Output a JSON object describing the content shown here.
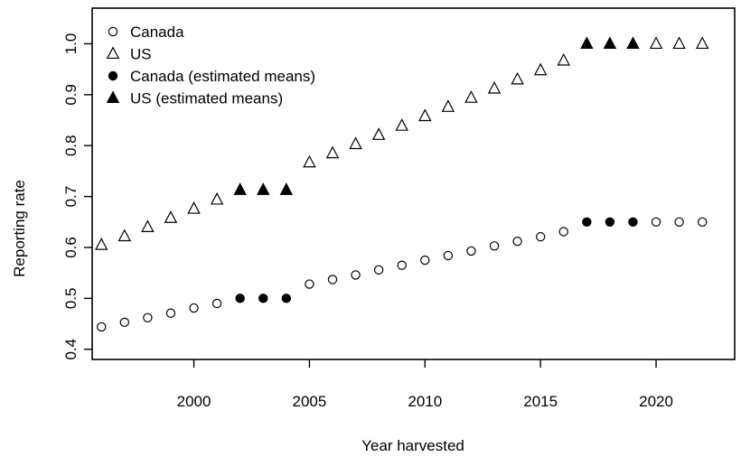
{
  "chart_data": {
    "type": "scatter",
    "xlabel": "Year harvested",
    "ylabel": "Reporting rate",
    "xlim": [
      1995.6,
      2023.4
    ],
    "ylim": [
      0.38,
      1.07
    ],
    "xticks": [
      2000,
      2005,
      2010,
      2015,
      2020
    ],
    "xtick_labels": [
      "2000",
      "2005",
      "2010",
      "2015",
      "2020"
    ],
    "yticks": [
      0.4,
      0.5,
      0.6,
      0.7,
      0.8,
      0.9,
      1.0
    ],
    "ytick_labels": [
      "0.4",
      "0.5",
      "0.6",
      "0.7",
      "0.8",
      "0.9",
      "1.0"
    ],
    "grid": false,
    "legend_position": "top-left",
    "series": [
      {
        "name": "Canada",
        "marker": "open-circle",
        "x": [
          1996,
          1997,
          1998,
          1999,
          2000,
          2001,
          2005,
          2006,
          2007,
          2008,
          2009,
          2010,
          2011,
          2012,
          2013,
          2014,
          2015,
          2016,
          2020,
          2021,
          2022
        ],
        "y": [
          0.444,
          0.453,
          0.462,
          0.471,
          0.481,
          0.49,
          0.528,
          0.537,
          0.546,
          0.556,
          0.565,
          0.575,
          0.584,
          0.593,
          0.603,
          0.612,
          0.621,
          0.631,
          0.65,
          0.65,
          0.65
        ]
      },
      {
        "name": "US",
        "marker": "open-triangle",
        "x": [
          1996,
          1997,
          1998,
          1999,
          2000,
          2001,
          2005,
          2006,
          2007,
          2008,
          2009,
          2010,
          2011,
          2012,
          2013,
          2014,
          2015,
          2016,
          2020,
          2021,
          2022
        ],
        "y": [
          0.605,
          0.622,
          0.64,
          0.658,
          0.676,
          0.694,
          0.767,
          0.785,
          0.803,
          0.821,
          0.839,
          0.858,
          0.876,
          0.894,
          0.912,
          0.93,
          0.948,
          0.967,
          1.0,
          1.0,
          1.0
        ]
      },
      {
        "name": "Canada (estimated means)",
        "marker": "filled-circle",
        "x": [
          2002,
          2003,
          2004,
          2017,
          2018,
          2019
        ],
        "y": [
          0.5,
          0.5,
          0.5,
          0.65,
          0.65,
          0.65
        ]
      },
      {
        "name": "US (estimated means)",
        "marker": "filled-triangle",
        "x": [
          2002,
          2003,
          2004,
          2017,
          2018,
          2019
        ],
        "y": [
          0.713,
          0.713,
          0.713,
          1.0,
          1.0,
          1.0
        ]
      }
    ]
  }
}
